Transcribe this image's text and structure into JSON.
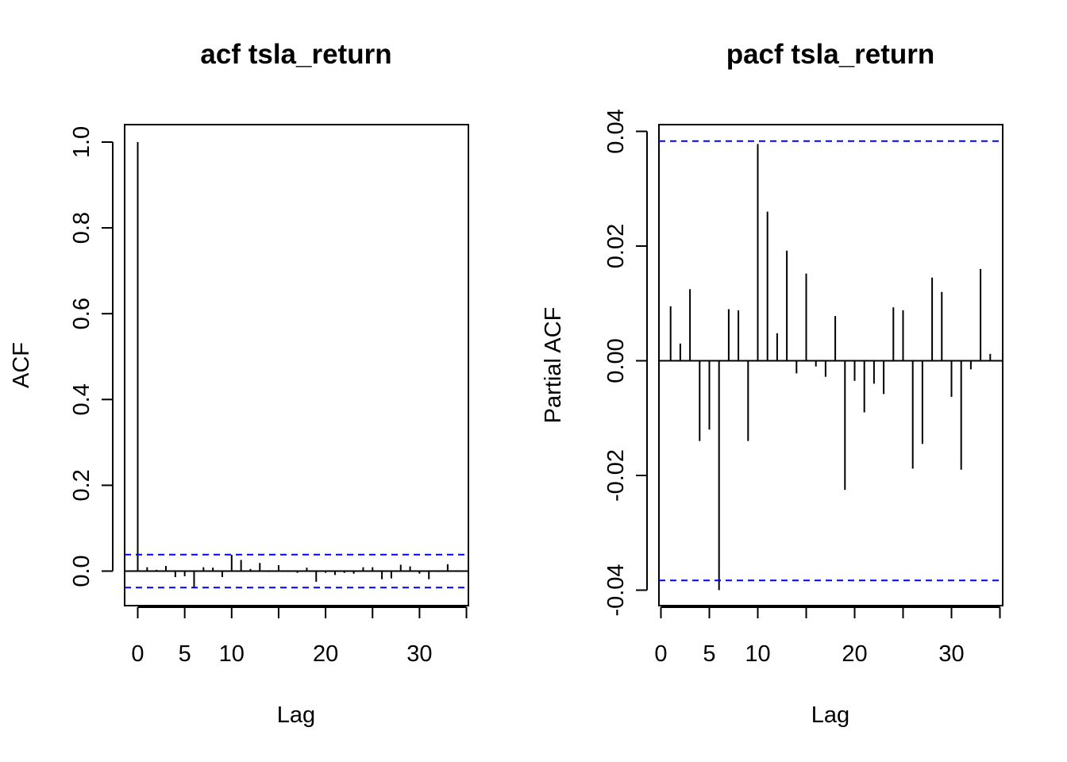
{
  "chart_data": [
    {
      "type": "bar",
      "title": "acf tsla_return",
      "xlabel": "Lag",
      "ylabel": "ACF",
      "xlim": [
        0,
        35
      ],
      "ylim": [
        -0.038,
        1.0
      ],
      "xticks": [
        0,
        5,
        10,
        20,
        30
      ],
      "yticks": [
        0.0,
        0.2,
        0.4,
        0.6,
        0.8,
        1.0
      ],
      "ytick_labels": [
        "0.0",
        "0.2",
        "0.4",
        "0.6",
        "0.8",
        "1.0"
      ],
      "confidence_band": 0.0383,
      "x": [
        0,
        1,
        2,
        3,
        4,
        5,
        6,
        7,
        8,
        9,
        10,
        11,
        12,
        13,
        14,
        15,
        16,
        17,
        18,
        19,
        20,
        21,
        22,
        23,
        24,
        25,
        26,
        27,
        28,
        29,
        30,
        31,
        32,
        33,
        34
      ],
      "values": [
        1.0,
        0.009,
        0.003,
        0.012,
        -0.014,
        -0.012,
        -0.04,
        0.009,
        0.008,
        -0.014,
        0.038,
        0.026,
        0.005,
        0.019,
        -0.002,
        0.014,
        -0.002,
        -0.004,
        0.008,
        -0.025,
        -0.004,
        -0.009,
        -0.004,
        -0.006,
        0.009,
        0.009,
        -0.019,
        -0.017,
        0.015,
        0.011,
        -0.006,
        -0.019,
        -0.002,
        0.016,
        0.002
      ],
      "colors": {
        "bars": "#000000",
        "band": "#0000ff",
        "axes": "#000000"
      }
    },
    {
      "type": "bar",
      "title": "pacf tsla_return",
      "xlabel": "Lag",
      "ylabel": "Partial ACF",
      "xlim": [
        1,
        35
      ],
      "ylim": [
        -0.04,
        0.04
      ],
      "xticks": [
        0,
        5,
        10,
        20,
        30
      ],
      "yticks": [
        -0.04,
        -0.02,
        0.0,
        0.02,
        0.04
      ],
      "ytick_labels": [
        "-0.04",
        "-0.02",
        "0.00",
        "0.02",
        "0.04"
      ],
      "confidence_band": 0.0383,
      "x": [
        1,
        2,
        3,
        4,
        5,
        6,
        7,
        8,
        9,
        10,
        11,
        12,
        13,
        14,
        15,
        16,
        17,
        18,
        19,
        20,
        21,
        22,
        23,
        24,
        25,
        26,
        27,
        28,
        29,
        30,
        31,
        32,
        33,
        34
      ],
      "values": [
        0.0095,
        0.003,
        0.0125,
        -0.014,
        -0.012,
        -0.04,
        0.009,
        0.0088,
        -0.014,
        0.0378,
        0.026,
        0.0048,
        0.0192,
        -0.0022,
        0.0152,
        -0.001,
        -0.0028,
        0.0078,
        -0.0225,
        -0.0035,
        -0.009,
        -0.004,
        -0.0058,
        0.0093,
        0.0088,
        -0.0188,
        -0.0145,
        0.0145,
        0.012,
        -0.0063,
        -0.019,
        -0.0015,
        0.016,
        0.0012
      ],
      "colors": {
        "bars": "#000000",
        "band": "#0000ff",
        "axes": "#000000"
      }
    }
  ]
}
